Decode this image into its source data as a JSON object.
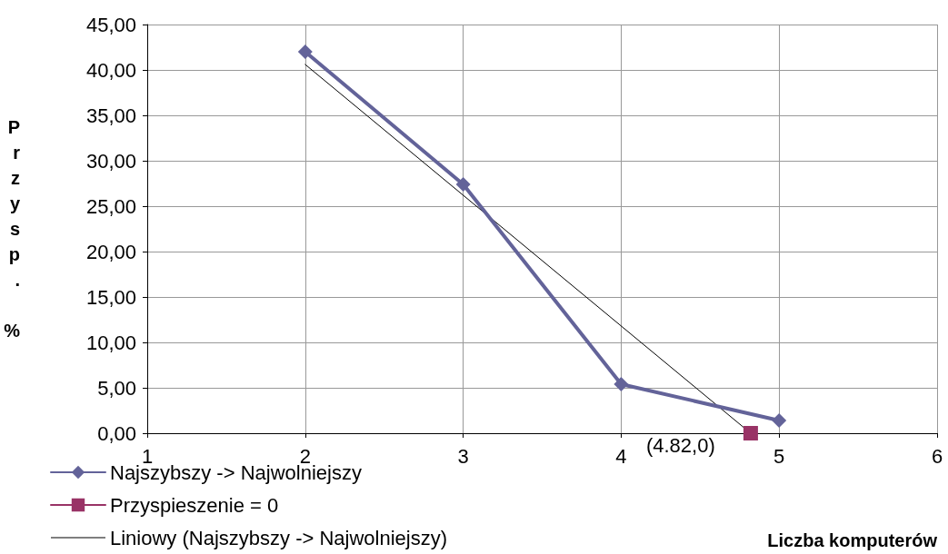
{
  "chart_data": {
    "type": "line",
    "xlabel": "Liczba komputerów",
    "ylabel": "Przysp. %",
    "xlim": [
      1,
      6
    ],
    "xticks": [
      1,
      2,
      3,
      4,
      5,
      6
    ],
    "ylim": [
      0,
      45
    ],
    "yticks": [
      {
        "value": 0,
        "label": "0,00"
      },
      {
        "value": 5,
        "label": "5,00"
      },
      {
        "value": 10,
        "label": "10,00"
      },
      {
        "value": 15,
        "label": "15,00"
      },
      {
        "value": 20,
        "label": "20,00"
      },
      {
        "value": 25,
        "label": "25,00"
      },
      {
        "value": 30,
        "label": "30,00"
      },
      {
        "value": 35,
        "label": "35,00"
      },
      {
        "value": 40,
        "label": "40,00"
      },
      {
        "value": 45,
        "label": "45,00"
      }
    ],
    "grid": true,
    "legend": "bottom left",
    "series": [
      {
        "name": "Najszybszy -> Najwolniejszy",
        "color": "#636399",
        "x": [
          2,
          3,
          4,
          5
        ],
        "values": [
          42.0,
          27.4,
          5.4,
          1.4
        ],
        "marker": "diamond",
        "line_style": "solid"
      },
      {
        "name": "Przyspieszenie = 0",
        "color": "#993366",
        "x": [
          4.82
        ],
        "values": [
          0
        ],
        "marker": "square",
        "line_style": "solid"
      },
      {
        "name": "Liniowy (Najszybszy -> Najwolniejszy)",
        "color": "#000000",
        "x": [
          2,
          4.82
        ],
        "values": [
          40.6,
          0
        ],
        "marker": "none",
        "line_style": "solid"
      }
    ],
    "annotations": [
      {
        "text": "(4.82,0)",
        "x": 4.82,
        "y": 0
      }
    ]
  }
}
